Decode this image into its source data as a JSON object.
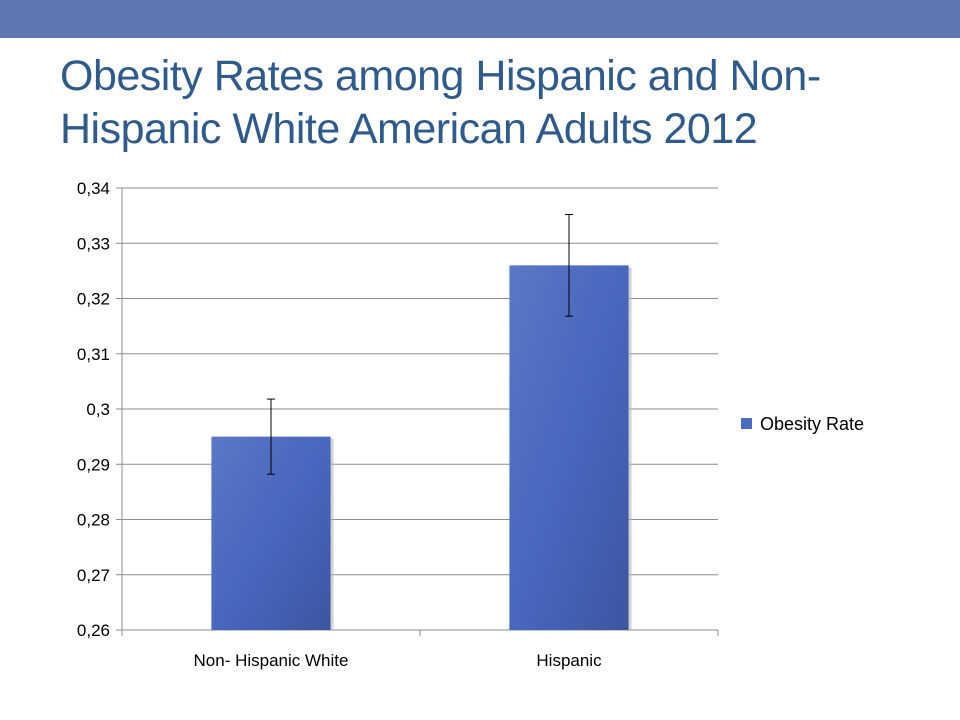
{
  "slide": {
    "title": "Obesity Rates among Hispanic and Non-Hispanic White American Adults 2012"
  },
  "colors": {
    "top_bar": "#6076b4",
    "title": "#2f5a8c",
    "bar": "#4b6cc0",
    "bar_dark": "#3d5aa6",
    "grid": "#8c8c8c"
  },
  "chart_data": {
    "type": "bar",
    "categories": [
      "Non- Hispanic White",
      "Hispanic"
    ],
    "series": [
      {
        "name": "Obesity Rate",
        "values": [
          0.295,
          0.326
        ],
        "error": [
          0.0068,
          0.0092
        ]
      }
    ],
    "ylim": [
      0.26,
      0.34
    ],
    "yticks": [
      0.26,
      0.27,
      0.28,
      0.29,
      0.3,
      0.31,
      0.32,
      0.33,
      0.34
    ],
    "ytick_labels": [
      "0,26",
      "0,27",
      "0,28",
      "0,29",
      "0,3",
      "0,31",
      "0,32",
      "0,33",
      "0,34"
    ],
    "grid": true,
    "legend": "right",
    "title": "",
    "xlabel": "",
    "ylabel": ""
  }
}
